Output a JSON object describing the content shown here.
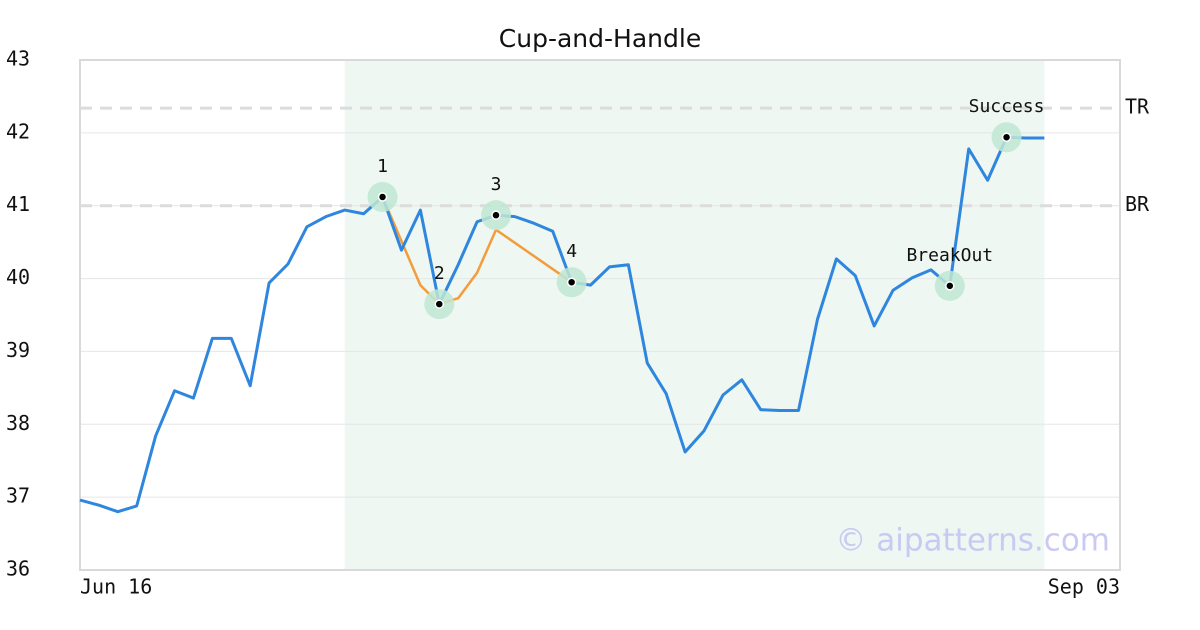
{
  "chart_data": {
    "type": "line",
    "title": "Cup-and-Handle",
    "categories": [
      "Jun 16",
      null,
      null,
      null,
      null,
      null,
      null,
      null,
      null,
      null,
      null,
      null,
      null,
      null,
      null,
      null,
      null,
      null,
      null,
      null,
      null,
      null,
      null,
      null,
      null,
      null,
      null,
      null,
      null,
      null,
      null,
      null,
      null,
      null,
      null,
      null,
      null,
      null,
      null,
      null,
      null,
      null,
      null,
      null,
      null,
      null,
      null,
      null,
      null,
      null,
      null,
      null,
      null,
      null,
      null,
      "Sep 03"
    ],
    "series": [
      {
        "color": "#2f86de",
        "values": [
          36.96,
          36.89,
          36.8,
          36.88,
          37.84,
          38.46,
          38.36,
          39.18,
          39.18,
          38.53,
          39.94,
          40.2,
          40.71,
          40.85,
          40.94,
          40.89,
          41.12,
          40.39,
          40.94,
          39.65,
          40.19,
          40.78,
          40.87,
          40.85,
          40.76,
          40.65,
          39.95,
          39.91,
          40.16,
          40.19,
          38.84,
          38.42,
          37.62,
          37.91,
          38.4,
          38.61,
          38.2,
          38.19,
          38.19,
          39.44,
          40.27,
          40.04,
          39.35,
          39.84,
          40.01,
          40.12,
          39.9,
          41.78,
          41.35,
          41.94,
          41.93,
          41.93,
          null,
          null,
          null,
          null
        ]
      },
      {
        "color": "#f39c3d",
        "x": [
          16,
          18,
          19,
          20,
          21,
          22,
          26
        ],
        "values": [
          41.12,
          39.91,
          39.65,
          39.73,
          40.08,
          40.67,
          39.95
        ]
      }
    ],
    "shaded_region": {
      "from": 14,
      "to": 51,
      "color": "#eef7f2"
    },
    "reference_lines": [
      {
        "label": "TR",
        "value": 42.34
      },
      {
        "label": "BR",
        "value": 41.0
      }
    ],
    "annotations": [
      {
        "label": "1",
        "x": 16,
        "y": 41.12
      },
      {
        "label": "2",
        "x": 19,
        "y": 39.65
      },
      {
        "label": "3",
        "x": 22,
        "y": 40.87
      },
      {
        "label": "4",
        "x": 26,
        "y": 39.95
      },
      {
        "label": "BreakOut",
        "x": 46,
        "y": 39.9
      },
      {
        "label": "Success",
        "x": 49,
        "y": 41.94
      }
    ],
    "watermark": "© aipatterns.com",
    "ylim": [
      36,
      43
    ],
    "yticks": [
      36,
      37,
      38,
      39,
      40,
      41,
      42,
      43
    ],
    "grid": true
  }
}
